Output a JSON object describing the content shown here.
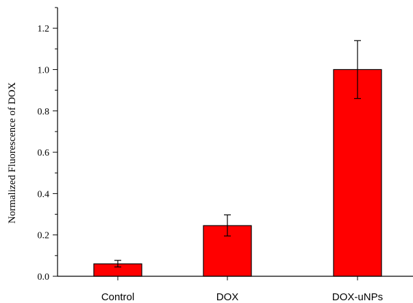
{
  "chart_data": {
    "type": "bar",
    "title": "",
    "xlabel": "",
    "ylabel": "Normalized Fluorescence of DOX",
    "categories": [
      "Control",
      "DOX",
      "DOX-uNPs"
    ],
    "values": [
      0.06,
      0.245,
      1.0
    ],
    "errors": [
      {
        "lower": 0.045,
        "upper": 0.077
      },
      {
        "lower": 0.195,
        "upper": 0.297
      },
      {
        "lower": 0.86,
        "upper": 1.14
      }
    ],
    "ylim": [
      0,
      1.3
    ],
    "yticks": [
      0.0,
      0.2,
      0.4,
      0.6,
      0.8,
      1.0,
      1.2
    ],
    "ytick_labels": [
      "0.0",
      "0.2",
      "0.4",
      "0.6",
      "0.8",
      "1.0",
      "1.2"
    ],
    "grid": false,
    "bar_color": "#ff0000",
    "bar_edge_color": "#000000"
  }
}
